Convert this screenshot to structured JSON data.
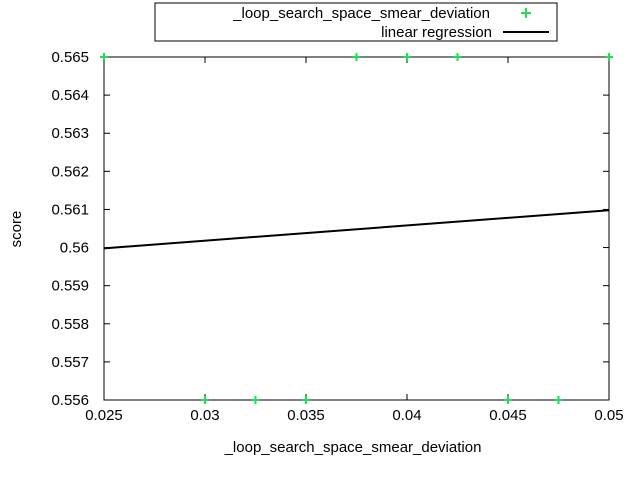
{
  "chart_data": {
    "type": "scatter",
    "xlabel": "_loop_search_space_smear_deviation",
    "ylabel": "score",
    "xlim": [
      0.025,
      0.05
    ],
    "ylim": [
      0.556,
      0.565
    ],
    "x_ticks": [
      "0.025",
      "0.03",
      "0.035",
      "0.04",
      "0.045",
      "0.05"
    ],
    "y_ticks": [
      "0.565",
      "0.564",
      "0.563",
      "0.562",
      "0.561",
      "0.56",
      "0.559",
      "0.558",
      "0.557",
      "0.556"
    ],
    "grid": false,
    "legend_position": "top-center",
    "series": [
      {
        "name": "_loop_search_space_smear_deviation",
        "kind": "points",
        "marker": "plus",
        "color": "#22dd55",
        "x": [
          0.025,
          0.0375,
          0.04,
          0.0425,
          0.05,
          0.03,
          0.0325,
          0.035,
          0.045,
          0.0475
        ],
        "y": [
          0.565,
          0.565,
          0.565,
          0.565,
          0.565,
          0.556,
          0.556,
          0.556,
          0.556,
          0.556
        ]
      },
      {
        "name": "linear regression",
        "kind": "line",
        "color": "#000000",
        "x": [
          0.025,
          0.05
        ],
        "y": [
          0.55998,
          0.56098
        ]
      }
    ]
  }
}
